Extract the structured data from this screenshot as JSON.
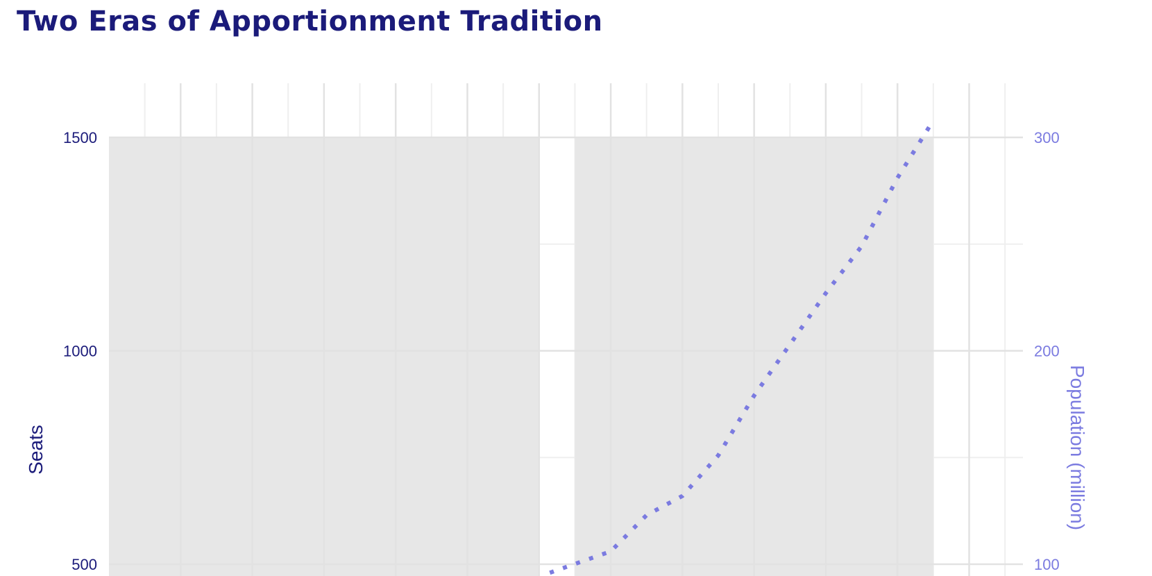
{
  "title": "Two Eras of Apportionment Tradition",
  "chart_data": {
    "type": "bar",
    "title": "Two Eras of Apportionment Tradition",
    "xlabel": "",
    "ylabel": "Seats",
    "y2label": "Population (million)",
    "ylim": [
      500,
      1500
    ],
    "y2lim": [
      100,
      300
    ],
    "yticks": [
      "1500",
      "1000",
      "500"
    ],
    "y2ticks": [
      "300",
      "200",
      "100"
    ],
    "grid": true,
    "xlim": [
      1780,
      2035
    ],
    "bars": [
      {
        "x_start": 1780,
        "x_end": 1900,
        "value": 1500
      },
      {
        "x_start": 1910,
        "x_end": 2010,
        "value": 1500
      }
    ],
    "series": [
      {
        "type": "line",
        "axis": "secondary",
        "style": "dotted",
        "x": [
          1903,
          1920,
          1930,
          1940,
          1950,
          1960,
          1970,
          1980,
          1990,
          2000,
          2010
        ],
        "values": [
          96,
          106,
          123,
          132,
          151,
          179,
          203,
          227,
          249,
          281,
          308
        ]
      }
    ],
    "colors": {
      "bar": "#e7e7e7",
      "line": "#7b7be0",
      "grid": "#e2e2e2",
      "primary_text": "#1b1b7a",
      "secondary_text": "#7b7be0"
    }
  }
}
